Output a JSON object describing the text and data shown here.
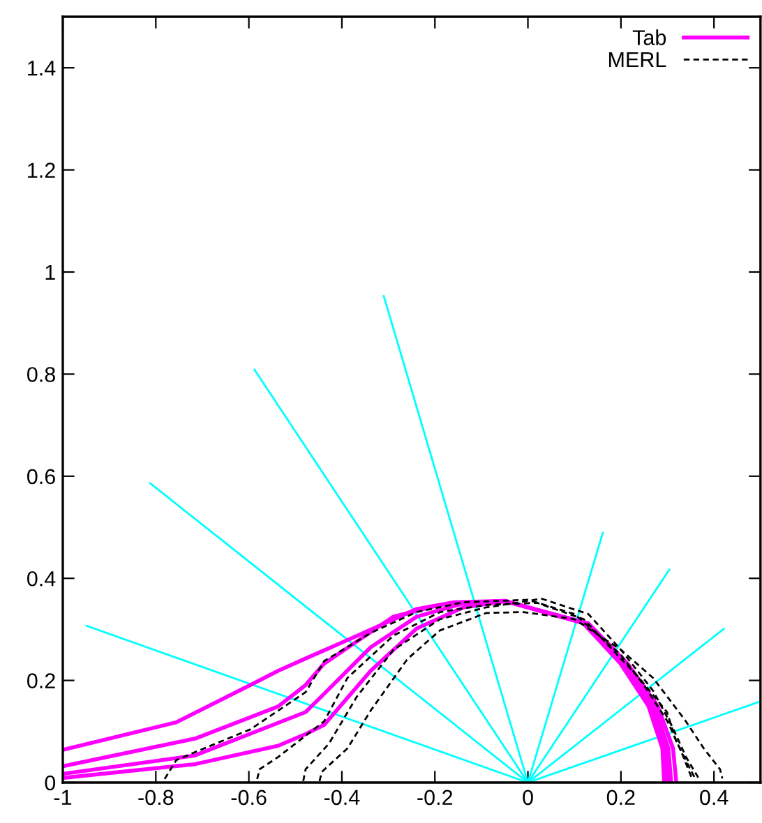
{
  "chart_data": {
    "type": "line",
    "xlim": [
      -1,
      0.5
    ],
    "ylim": [
      0,
      1.5
    ],
    "xticks": [
      -1,
      -0.8,
      -0.6,
      -0.4,
      -0.2,
      0,
      0.2,
      0.4
    ],
    "yticks": [
      0,
      0.2,
      0.4,
      0.6,
      0.8,
      1,
      1.2,
      1.4
    ],
    "grid": false,
    "legend": "top right",
    "marker": "none",
    "series": [
      {
        "color": "#00ffff",
        "line_style": "solid",
        "x": [
          0,
          -0.949
        ],
        "values": [
          0,
          0.307
        ]
      },
      {
        "color": "#00ffff",
        "line_style": "solid",
        "x": [
          0,
          -0.812
        ],
        "values": [
          0,
          0.586
        ]
      },
      {
        "color": "#00ffff",
        "line_style": "solid",
        "x": [
          0,
          -0.588
        ],
        "values": [
          0,
          0.809
        ]
      },
      {
        "color": "#00ffff",
        "line_style": "solid",
        "x": [
          0,
          -0.31
        ],
        "values": [
          0,
          0.953
        ]
      },
      {
        "color": "#00ffff",
        "line_style": "solid",
        "x": [
          0,
          0.161
        ],
        "values": [
          0,
          0.489
        ]
      },
      {
        "color": "#00ffff",
        "line_style": "solid",
        "x": [
          0,
          0.304
        ],
        "values": [
          0,
          0.417
        ]
      },
      {
        "color": "#00ffff",
        "line_style": "solid",
        "x": [
          0,
          0.421
        ],
        "values": [
          0,
          0.301
        ]
      },
      {
        "color": "#00ffff",
        "line_style": "solid",
        "x": [
          0,
          0.5
        ],
        "values": [
          0,
          0.159
        ]
      },
      {
        "name": "Tab",
        "color": "#ff00ff",
        "line_style": "solid",
        "x": [
          -1,
          -0.756,
          -0.597,
          -0.537,
          -0.478,
          -0.388,
          -0.239,
          -0.159,
          -0.05,
          0.119,
          0.199,
          0.259,
          0.289,
          0.293
        ],
        "values": [
          0.064,
          0.118,
          0.191,
          0.219,
          0.243,
          0.279,
          0.34,
          0.353,
          0.356,
          0.312,
          0.233,
          0.15,
          0.067,
          0
        ]
      },
      {
        "color": "#ff00ff",
        "line_style": "solid",
        "x": [
          -1,
          -0.716,
          -0.537,
          -0.478,
          -0.438,
          -0.289,
          -0.189,
          -0.05,
          0.122,
          0.203,
          0.265,
          0.295,
          0.301
        ],
        "values": [
          0.032,
          0.086,
          0.149,
          0.191,
          0.233,
          0.325,
          0.348,
          0.356,
          0.312,
          0.233,
          0.15,
          0.067,
          0
        ]
      },
      {
        "color": "#ff00ff",
        "line_style": "solid",
        "x": [
          -1,
          -0.716,
          -0.478,
          -0.438,
          -0.338,
          -0.239,
          -0.139,
          -0.05,
          0.126,
          0.208,
          0.271,
          0.302,
          0.308
        ],
        "values": [
          0.017,
          0.053,
          0.138,
          0.174,
          0.265,
          0.325,
          0.351,
          0.356,
          0.312,
          0.233,
          0.15,
          0.067,
          0
        ]
      },
      {
        "color": "#ff00ff",
        "line_style": "solid",
        "x": [
          -1,
          -0.716,
          -0.537,
          -0.478,
          -0.438,
          -0.338,
          -0.239,
          -0.139,
          -0.05,
          0.13,
          0.214,
          0.279,
          0.312,
          0.319
        ],
        "values": [
          0.009,
          0.036,
          0.072,
          0.095,
          0.113,
          0.219,
          0.302,
          0.343,
          0.355,
          0.312,
          0.233,
          0.15,
          0.067,
          0
        ]
      },
      {
        "name": "MERL",
        "color": "#000000",
        "line_style": "dashed",
        "x": [
          -0.781,
          -0.756,
          -0.696,
          -0.597,
          -0.478,
          -0.438,
          -0.338,
          -0.239,
          -0.139,
          0.0,
          0.1,
          0.2,
          0.25,
          0.3,
          0.33,
          0.353
        ],
        "values": [
          0.007,
          0.044,
          0.067,
          0.104,
          0.177,
          0.238,
          0.293,
          0.334,
          0.353,
          0.358,
          0.33,
          0.25,
          0.19,
          0.12,
          0.06,
          0.007
        ]
      },
      {
        "color": "#000000",
        "line_style": "dashed",
        "x": [
          -0.582,
          -0.577,
          -0.537,
          -0.438,
          -0.388,
          -0.289,
          -0.189,
          -0.09,
          0.02,
          0.12,
          0.239,
          0.299,
          0.318,
          0.348,
          0.36
        ],
        "values": [
          0.007,
          0.026,
          0.05,
          0.12,
          0.205,
          0.288,
          0.334,
          0.348,
          0.352,
          0.32,
          0.205,
          0.138,
          0.083,
          0.028,
          0.007
        ]
      },
      {
        "color": "#000000",
        "line_style": "dashed",
        "x": [
          -0.483,
          -0.478,
          -0.428,
          -0.368,
          -0.289,
          -0.189,
          -0.09,
          0.03,
          0.13,
          0.2,
          0.269,
          0.31,
          0.34,
          0.368
        ],
        "values": [
          0.003,
          0.026,
          0.076,
          0.168,
          0.26,
          0.32,
          0.343,
          0.36,
          0.33,
          0.26,
          0.18,
          0.11,
          0.05,
          0.007
        ]
      },
      {
        "color": "#000000",
        "line_style": "dashed",
        "x": [
          -0.448,
          -0.443,
          -0.388,
          -0.338,
          -0.259,
          -0.189,
          -0.09,
          -0.01,
          0.1,
          0.2,
          0.269,
          0.338,
          0.378,
          0.413,
          0.418
        ],
        "values": [
          0.003,
          0.021,
          0.067,
          0.141,
          0.242,
          0.298,
          0.332,
          0.334,
          0.32,
          0.26,
          0.205,
          0.122,
          0.067,
          0.026,
          0.008
        ]
      }
    ]
  }
}
